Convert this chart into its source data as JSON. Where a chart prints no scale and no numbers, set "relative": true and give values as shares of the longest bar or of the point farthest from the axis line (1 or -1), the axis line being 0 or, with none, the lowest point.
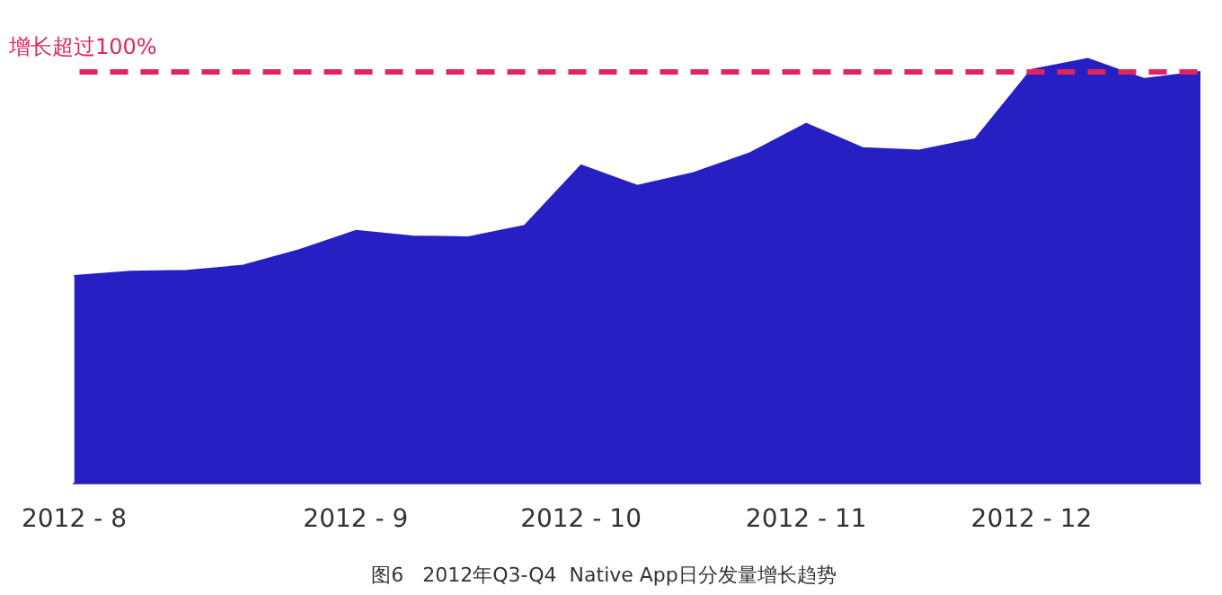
{
  "chart_data": {
    "type": "area",
    "title": "图6   2012年Q3-Q4  Native App日分发量增长趋势",
    "relative": true,
    "categories": [
      "2012 - 8",
      null,
      null,
      null,
      null,
      "2012 - 9",
      null,
      null,
      null,
      "2012 - 10",
      null,
      null,
      null,
      "2012 - 11",
      null,
      null,
      null,
      "2012 - 12",
      null,
      null,
      null
    ],
    "series": [
      {
        "color": "#2620c4",
        "values": [
          0.489,
          0.499,
          0.501,
          0.513,
          0.55,
          0.595,
          0.582,
          0.58,
          0.607,
          0.749,
          0.701,
          0.731,
          0.778,
          0.847,
          0.79,
          0.784,
          0.811,
          0.974,
          1,
          0.953,
          0.969
        ]
      }
    ],
    "ref_lines": [
      {
        "axis": "y",
        "value": 0.969,
        "label": "增长超过100%",
        "color": "#e0245e",
        "line_style": "dashed"
      }
    ],
    "grid": false,
    "legend": false
  }
}
